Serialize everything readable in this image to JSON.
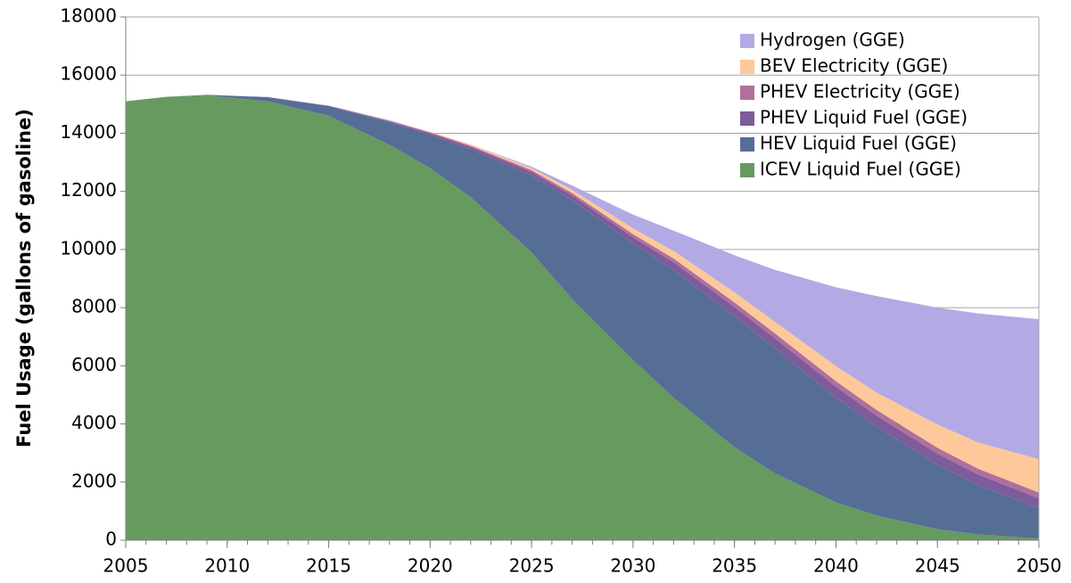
{
  "chart_data": {
    "type": "stacked_area",
    "y_label": "Fuel Usage (gallons of gasoline)",
    "x": [
      2005,
      2007,
      2009,
      2012,
      2015,
      2018,
      2020,
      2022,
      2025,
      2027,
      2030,
      2032,
      2035,
      2037,
      2040,
      2042,
      2045,
      2047,
      2050
    ],
    "series": [
      {
        "name": "ICEV Liquid Fuel (GGE)",
        "color": "#669a5f",
        "values": [
          15100,
          15250,
          15300,
          15100,
          14600,
          13600,
          12800,
          11800,
          9900,
          8300,
          6200,
          4900,
          3200,
          2300,
          1300,
          850,
          380,
          200,
          60
        ]
      },
      {
        "name": "HEV Liquid Fuel (GGE)",
        "color": "#566d96",
        "values": [
          0,
          0,
          20,
          140,
          330,
          780,
          1150,
          1650,
          2650,
          3400,
          4000,
          4400,
          4500,
          4300,
          3600,
          3050,
          2220,
          1700,
          1040
        ]
      },
      {
        "name": "PHEV Liquid Fuel (GGE)",
        "color": "#7e5b9b",
        "values": [
          0,
          0,
          0,
          0,
          10,
          30,
          50,
          80,
          120,
          160,
          220,
          260,
          320,
          340,
          380,
          380,
          380,
          360,
          340
        ]
      },
      {
        "name": "PHEV Electricity (GGE)",
        "color": "#b06f9d",
        "values": [
          0,
          0,
          0,
          0,
          10,
          20,
          30,
          40,
          60,
          80,
          110,
          130,
          160,
          170,
          190,
          200,
          200,
          200,
          200
        ]
      },
      {
        "name": "BEV Electricity (GGE)",
        "color": "#fdc99a",
        "values": [
          0,
          0,
          0,
          0,
          0,
          10,
          20,
          40,
          70,
          110,
          200,
          260,
          350,
          400,
          520,
          600,
          800,
          900,
          1150
        ]
      },
      {
        "name": "Hydrogen (GGE)",
        "color": "#b3a9e5",
        "values": [
          0,
          0,
          0,
          10,
          0,
          10,
          0,
          0,
          50,
          150,
          470,
          700,
          1270,
          1790,
          2710,
          3320,
          4020,
          4440,
          4810
        ]
      }
    ],
    "xlim": [
      2005,
      2050
    ],
    "xticks": [
      2005,
      2010,
      2015,
      2020,
      2025,
      2030,
      2035,
      2040,
      2045,
      2050
    ],
    "ylim": [
      0,
      18000
    ],
    "yticks": [
      0,
      2000,
      4000,
      6000,
      8000,
      10000,
      12000,
      14000,
      16000,
      18000
    ],
    "grid": true,
    "legend": "upper right"
  }
}
